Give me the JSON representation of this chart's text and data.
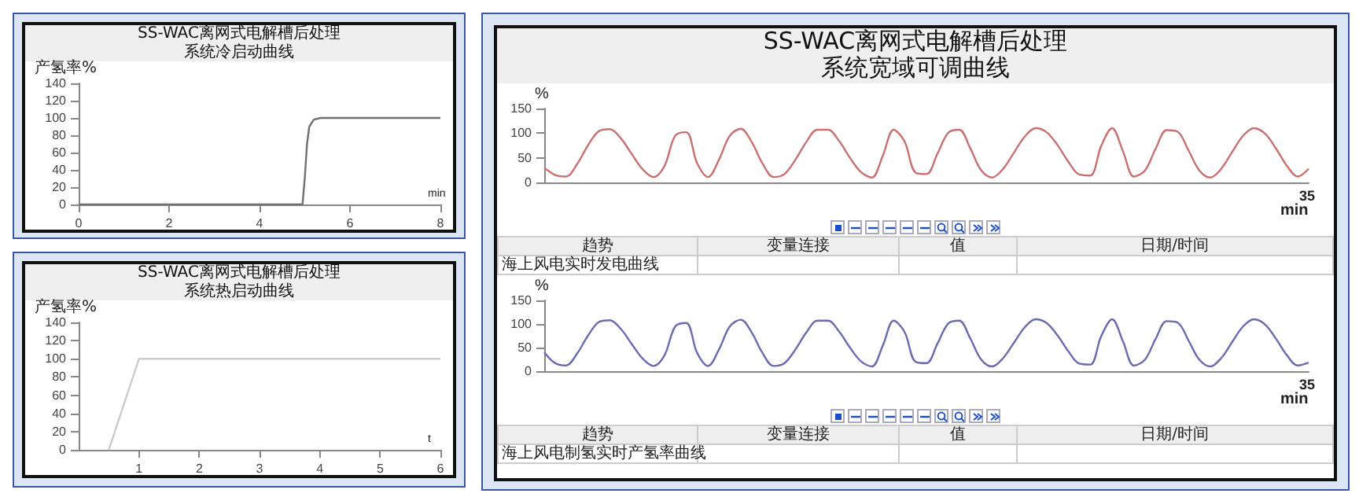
{
  "chart_data": [
    {
      "type": "line",
      "title": "SS-WAC离网式电解槽后处理",
      "subtitle": "系统冷启动曲线",
      "ylabel": "产氢率%",
      "xlabel": "min",
      "marker": "none",
      "x": [
        0,
        4.95,
        5.0,
        5.05,
        5.1,
        5.2,
        5.35,
        8
      ],
      "series": [
        {
          "color": "#707070",
          "values": [
            0,
            0,
            30,
            70,
            90,
            98,
            100,
            100
          ]
        }
      ],
      "xlim": [
        0,
        8
      ],
      "xticks": [
        0,
        2,
        4,
        6,
        8
      ],
      "ylim": [
        0,
        140
      ],
      "yticks": [
        0,
        20,
        40,
        60,
        80,
        100,
        120,
        140
      ]
    },
    {
      "type": "line",
      "title": "SS-WAC离网式电解槽后处理",
      "subtitle": "系统热启动曲线",
      "ylabel": "产氢率%",
      "xlabel": "t",
      "marker": "none",
      "x": [
        0.5,
        1.0,
        6
      ],
      "series": [
        {
          "color": "#cccccc",
          "values": [
            0,
            100,
            100
          ]
        }
      ],
      "xlim": [
        0,
        6
      ],
      "xticks": [
        1,
        2,
        3,
        4,
        5,
        6
      ],
      "ylim": [
        0,
        140
      ],
      "yticks": [
        0,
        20,
        40,
        60,
        80,
        100,
        120,
        140
      ]
    },
    {
      "type": "line",
      "title": "SS-WAC离网式电解槽后处理",
      "subtitle": "系统宽域可调曲线",
      "ylabel": "%",
      "xlabel": "min",
      "marker": "none",
      "annotations": [
        "35",
        "趋势",
        "变量连接",
        "值",
        "日期/时间",
        "海上风电实时发电曲线"
      ],
      "categories": [
        null,
        null,
        null,
        null,
        null,
        null,
        null,
        null,
        null,
        null,
        null,
        null,
        null,
        null,
        null,
        null,
        null,
        null,
        null,
        null,
        null,
        null,
        null,
        null,
        null,
        null,
        null,
        null,
        null,
        null,
        null,
        null,
        null,
        null,
        null,
        null,
        null,
        null,
        null,
        null,
        null,
        null,
        null,
        null,
        null,
        null,
        null,
        null,
        null,
        null,
        null,
        null,
        null,
        null,
        null,
        null,
        null,
        null,
        null,
        null,
        null,
        null,
        null,
        null,
        null,
        null,
        null,
        null,
        null,
        null,
        null
      ],
      "series": [
        {
          "color": "#c97070",
          "values": [
            30,
            15,
            12,
            37,
            75,
            104,
            108,
            90,
            58,
            27,
            11,
            33,
            95,
            102,
            39,
            11,
            46,
            95,
            109,
            82,
            38,
            11,
            17,
            46,
            82,
            107,
            107,
            84,
            50,
            21,
            10,
            54,
            107,
            83,
            20,
            17,
            58,
            101,
            107,
            70,
            25,
            10,
            27,
            60,
            93,
            110,
            102,
            76,
            42,
            16,
            14,
            74,
            110,
            63,
            12,
            24,
            69,
            106,
            103,
            65,
            24,
            10,
            28,
            62,
            95,
            110,
            99,
            69,
            34,
            12,
            28
          ]
        }
      ],
      "ylim": [
        0,
        150
      ],
      "yticks": [
        0,
        50,
        100,
        150
      ]
    },
    {
      "type": "line",
      "ylabel": "%",
      "xlabel": "min",
      "marker": "none",
      "annotations": [
        "35",
        "趋势",
        "变量连接",
        "值",
        "日期/时间",
        "海上风电制氢实时产氢率曲线"
      ],
      "categories": [
        null,
        null,
        null,
        null,
        null,
        null,
        null,
        null,
        null,
        null,
        null,
        null,
        null,
        null,
        null,
        null,
        null,
        null,
        null,
        null,
        null,
        null,
        null,
        null,
        null,
        null,
        null,
        null,
        null,
        null,
        null,
        null,
        null,
        null,
        null,
        null,
        null,
        null,
        null,
        null,
        null,
        null,
        null,
        null,
        null,
        null,
        null,
        null,
        null,
        null,
        null,
        null,
        null,
        null,
        null,
        null,
        null,
        null,
        null,
        null,
        null,
        null,
        null,
        null,
        null,
        null,
        null,
        null,
        null,
        null,
        null
      ],
      "series": [
        {
          "color": "#6a6ab0",
          "values": [
            40,
            17,
            12,
            37,
            75,
            104,
            108,
            90,
            58,
            27,
            11,
            33,
            95,
            102,
            39,
            11,
            46,
            95,
            109,
            82,
            38,
            11,
            17,
            46,
            82,
            107,
            107,
            84,
            50,
            21,
            10,
            54,
            107,
            83,
            20,
            17,
            58,
            101,
            107,
            70,
            25,
            10,
            27,
            60,
            93,
            110,
            102,
            76,
            42,
            16,
            14,
            74,
            110,
            63,
            12,
            24,
            69,
            106,
            103,
            65,
            24,
            10,
            28,
            62,
            95,
            110,
            99,
            69,
            34,
            12,
            18
          ]
        }
      ],
      "ylim": [
        0,
        150
      ],
      "yticks": [
        0,
        50,
        100,
        150
      ]
    }
  ]
}
